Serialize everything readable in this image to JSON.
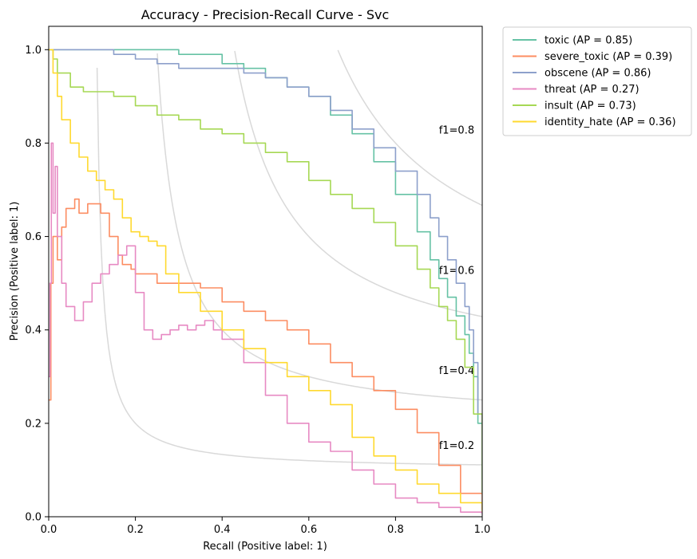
{
  "chart_data": {
    "type": "line",
    "title": "Accuracy - Precision-Recall Curve - Svc",
    "xlabel": "Recall (Positive label: 1)",
    "ylabel": "Precision (Positive label: 1)",
    "xlim": [
      0,
      1
    ],
    "ylim": [
      0,
      1.05
    ],
    "xticks": [
      "0.0",
      "0.2",
      "0.4",
      "0.6",
      "0.8",
      "1.0"
    ],
    "yticks": [
      "0.0",
      "0.2",
      "0.4",
      "0.6",
      "0.8",
      "1.0"
    ],
    "grid": false,
    "legend_position": "outside-top-right",
    "iso_f1": [
      {
        "f1": 0.2,
        "label": "f1=0.2"
      },
      {
        "f1": 0.4,
        "label": "f1=0.4"
      },
      {
        "f1": 0.6,
        "label": "f1=0.6"
      },
      {
        "f1": 0.8,
        "label": "f1=0.8"
      }
    ],
    "iso_color": "#d9d9d9",
    "series": [
      {
        "name": "toxic (AP = 0.85)",
        "color": "#66c2a5",
        "x": [
          0.0,
          0.05,
          0.1,
          0.2,
          0.25,
          0.3,
          0.4,
          0.45,
          0.5,
          0.55,
          0.6,
          0.65,
          0.7,
          0.75,
          0.8,
          0.85,
          0.88,
          0.9,
          0.92,
          0.94,
          0.96,
          0.97,
          0.98,
          0.99,
          1.0
        ],
        "y": [
          1.0,
          1.0,
          1.0,
          1.0,
          1.0,
          0.99,
          0.97,
          0.96,
          0.94,
          0.92,
          0.9,
          0.86,
          0.82,
          0.76,
          0.69,
          0.61,
          0.55,
          0.51,
          0.47,
          0.43,
          0.39,
          0.35,
          0.3,
          0.2,
          0.08
        ]
      },
      {
        "name": "severe_toxic (AP = 0.39)",
        "color": "#fc8d62",
        "x": [
          0.0,
          0.005,
          0.01,
          0.02,
          0.03,
          0.04,
          0.06,
          0.07,
          0.09,
          0.12,
          0.14,
          0.16,
          0.17,
          0.19,
          0.2,
          0.25,
          0.3,
          0.35,
          0.4,
          0.45,
          0.5,
          0.55,
          0.6,
          0.65,
          0.7,
          0.75,
          0.8,
          0.85,
          0.9,
          0.95,
          1.0
        ],
        "y": [
          0.25,
          0.5,
          0.6,
          0.55,
          0.62,
          0.66,
          0.68,
          0.65,
          0.67,
          0.65,
          0.6,
          0.56,
          0.54,
          0.53,
          0.52,
          0.5,
          0.5,
          0.49,
          0.46,
          0.44,
          0.42,
          0.4,
          0.37,
          0.33,
          0.3,
          0.27,
          0.23,
          0.18,
          0.11,
          0.05,
          0.015
        ]
      },
      {
        "name": "obscene (AP = 0.86)",
        "color": "#8da0cb",
        "x": [
          0.0,
          0.05,
          0.1,
          0.15,
          0.2,
          0.25,
          0.3,
          0.4,
          0.45,
          0.5,
          0.55,
          0.6,
          0.65,
          0.7,
          0.75,
          0.8,
          0.85,
          0.88,
          0.9,
          0.92,
          0.94,
          0.96,
          0.97,
          0.98,
          0.99,
          1.0
        ],
        "y": [
          1.0,
          1.0,
          1.0,
          0.99,
          0.98,
          0.97,
          0.96,
          0.96,
          0.95,
          0.94,
          0.92,
          0.9,
          0.87,
          0.83,
          0.79,
          0.74,
          0.69,
          0.64,
          0.6,
          0.55,
          0.5,
          0.45,
          0.4,
          0.33,
          0.22,
          0.05
        ]
      },
      {
        "name": "threat (AP = 0.27)",
        "color": "#e78ac3",
        "x": [
          0.0,
          0.003,
          0.006,
          0.01,
          0.015,
          0.02,
          0.03,
          0.04,
          0.06,
          0.08,
          0.1,
          0.12,
          0.14,
          0.16,
          0.18,
          0.2,
          0.22,
          0.24,
          0.26,
          0.28,
          0.3,
          0.32,
          0.34,
          0.36,
          0.38,
          0.4,
          0.45,
          0.5,
          0.55,
          0.6,
          0.65,
          0.7,
          0.75,
          0.8,
          0.85,
          0.9,
          0.95,
          1.0
        ],
        "y": [
          0.3,
          0.5,
          0.8,
          0.65,
          0.75,
          0.6,
          0.5,
          0.45,
          0.42,
          0.46,
          0.5,
          0.52,
          0.54,
          0.56,
          0.58,
          0.48,
          0.4,
          0.38,
          0.39,
          0.4,
          0.41,
          0.4,
          0.41,
          0.42,
          0.4,
          0.38,
          0.33,
          0.26,
          0.2,
          0.16,
          0.14,
          0.1,
          0.07,
          0.04,
          0.03,
          0.02,
          0.01,
          0.005
        ]
      },
      {
        "name": "insult (AP = 0.73)",
        "color": "#a6d854",
        "x": [
          0.0,
          0.01,
          0.02,
          0.05,
          0.08,
          0.1,
          0.15,
          0.2,
          0.25,
          0.3,
          0.35,
          0.4,
          0.45,
          0.5,
          0.55,
          0.6,
          0.65,
          0.7,
          0.75,
          0.8,
          0.85,
          0.88,
          0.9,
          0.92,
          0.94,
          0.96,
          0.98,
          1.0
        ],
        "y": [
          1.0,
          0.98,
          0.95,
          0.92,
          0.91,
          0.91,
          0.9,
          0.88,
          0.86,
          0.85,
          0.83,
          0.82,
          0.8,
          0.78,
          0.76,
          0.72,
          0.69,
          0.66,
          0.63,
          0.58,
          0.53,
          0.49,
          0.45,
          0.42,
          0.38,
          0.32,
          0.22,
          0.05
        ]
      },
      {
        "name": "identity_hate (AP = 0.36)",
        "color": "#ffd92f",
        "x": [
          0.0,
          0.01,
          0.02,
          0.03,
          0.05,
          0.07,
          0.09,
          0.11,
          0.13,
          0.15,
          0.17,
          0.19,
          0.21,
          0.23,
          0.25,
          0.27,
          0.3,
          0.35,
          0.4,
          0.45,
          0.5,
          0.55,
          0.6,
          0.65,
          0.7,
          0.75,
          0.8,
          0.85,
          0.9,
          0.95,
          1.0
        ],
        "y": [
          1.0,
          0.95,
          0.9,
          0.85,
          0.8,
          0.77,
          0.74,
          0.72,
          0.7,
          0.68,
          0.64,
          0.61,
          0.6,
          0.59,
          0.58,
          0.52,
          0.48,
          0.44,
          0.4,
          0.36,
          0.33,
          0.3,
          0.27,
          0.24,
          0.17,
          0.13,
          0.1,
          0.07,
          0.05,
          0.03,
          0.01
        ]
      }
    ]
  }
}
